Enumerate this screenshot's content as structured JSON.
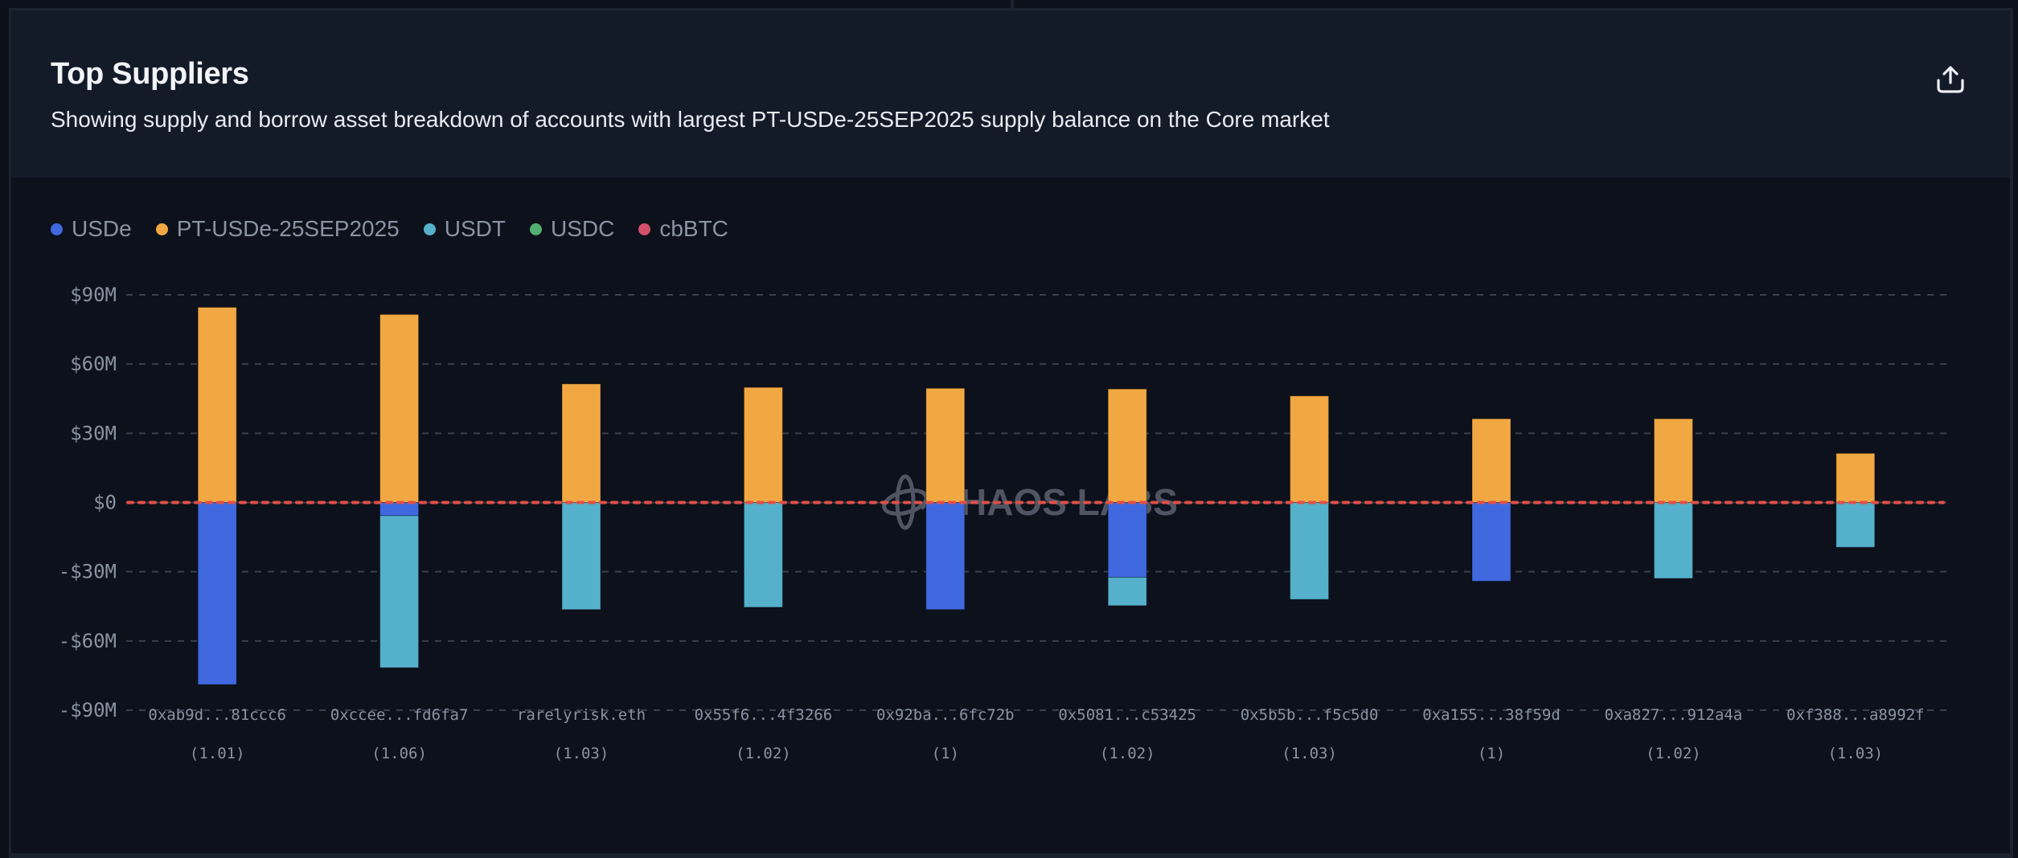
{
  "header": {
    "title": "Top Suppliers",
    "subtitle": "Showing supply and borrow asset breakdown of accounts with largest PT-USDe-25SEP2025 supply balance on the Core market",
    "export_icon": "share-upload-icon"
  },
  "legend": [
    {
      "name": "USDe",
      "color": "#4069e0"
    },
    {
      "name": "PT-USDe-25SEP2025",
      "color": "#f2a842"
    },
    {
      "name": "USDT",
      "color": "#55b0cc"
    },
    {
      "name": "USDC",
      "color": "#52b070"
    },
    {
      "name": "cbBTC",
      "color": "#d4506a"
    }
  ],
  "watermark": {
    "text": "HAOS LABS",
    "icon": "chaos-labs-logo-icon"
  },
  "chart_data": {
    "type": "bar",
    "stacked": true,
    "title": "Top Suppliers",
    "xlabel": "",
    "ylabel": "",
    "ylim": [
      -90,
      90
    ],
    "y_unit": "$M",
    "y_ticks": [
      90,
      60,
      30,
      0,
      -30,
      -60,
      -90
    ],
    "y_tick_labels": [
      "$90M",
      "$60M",
      "$30M",
      "$0",
      "-$30M",
      "-$60M",
      "-$90M"
    ],
    "grid": true,
    "legend_position": "top-left",
    "zero_line_color": "#e0504a",
    "categories": [
      "0xab9d...81ccc6",
      "0xccee...fd6fa7",
      "rarelyrisk.eth",
      "0x55f6...4f3266",
      "0x92ba...6fc72b",
      "0x5081...c53425",
      "0x5b5b...f5c5d0",
      "0xa155...38f59d",
      "0xa827...912a4a",
      "0xf388...a8992f"
    ],
    "health_factors": [
      "(1.01)",
      "(1.06)",
      "(1.03)",
      "(1.02)",
      "(1)",
      "(1.02)",
      "(1.03)",
      "(1)",
      "(1.02)",
      "(1.03)"
    ],
    "series": [
      {
        "name": "PT-USDe-25SEP2025",
        "color": "#f2a842",
        "values": [
          84.6,
          81.5,
          51.4,
          49.9,
          49.5,
          49.2,
          46.2,
          36.3,
          36.3,
          21.3
        ]
      },
      {
        "name": "USDe",
        "color": "#4069e0",
        "values": [
          -78.9,
          -5.7,
          0,
          0,
          -46.4,
          -32.4,
          0,
          -34.1,
          0,
          0
        ]
      },
      {
        "name": "USDT",
        "color": "#55b0cc",
        "values": [
          0,
          -65.9,
          -46.4,
          -45.4,
          0,
          -12.3,
          -42.0,
          0,
          -32.9,
          -19.4
        ]
      },
      {
        "name": "USDC",
        "color": "#52b070",
        "values": [
          0,
          0,
          0,
          0,
          0,
          0,
          0,
          0,
          0,
          0
        ]
      },
      {
        "name": "cbBTC",
        "color": "#d4506a",
        "values": [
          0,
          0,
          0,
          0,
          0,
          0,
          0,
          0,
          0,
          0
        ]
      }
    ]
  }
}
